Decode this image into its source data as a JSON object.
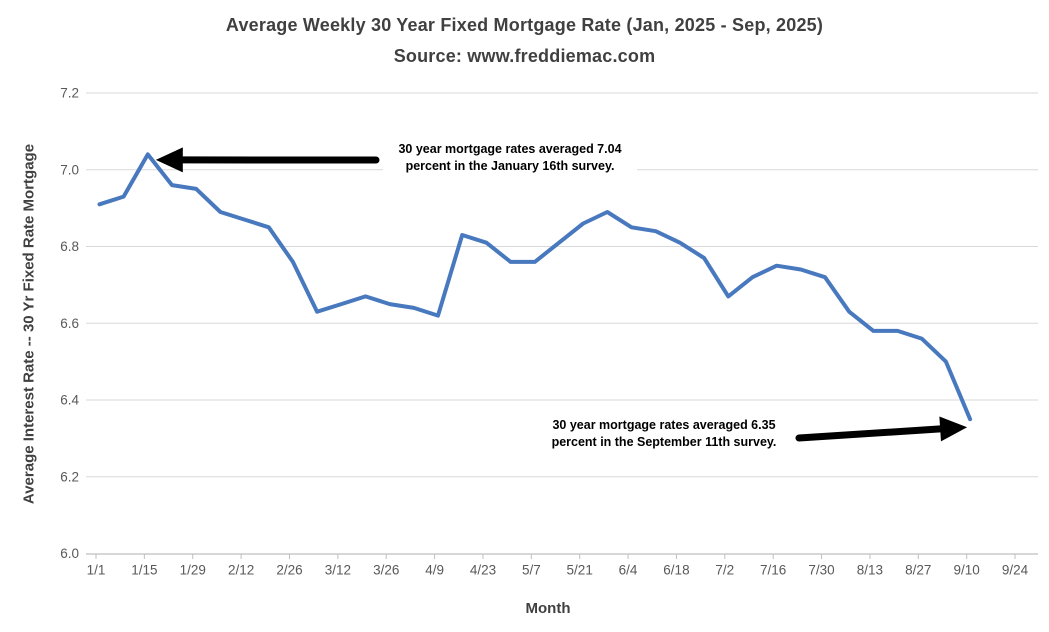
{
  "title": {
    "line1": "Average Weekly 30 Year Fixed Mortgage Rate (Jan, 2025 - Sep, 2025)",
    "line2": "Source: www.freddiemac.com"
  },
  "chart_data": {
    "type": "line",
    "title": "Average Weekly 30 Year Fixed Mortgage Rate (Jan, 2025 - Sep, 2025)",
    "subtitle": "Source: www.freddiemac.com",
    "xlabel": "Month",
    "ylabel": "Average Interest Rate -- 30 Yr Fixed Rate Mortgage",
    "x": [
      "1/2",
      "1/9",
      "1/16",
      "1/23",
      "1/30",
      "2/6",
      "2/13",
      "2/20",
      "2/27",
      "3/6",
      "3/13",
      "3/20",
      "3/27",
      "4/3",
      "4/10",
      "4/17",
      "4/24",
      "5/1",
      "5/8",
      "5/15",
      "5/22",
      "5/29",
      "6/5",
      "6/12",
      "6/19",
      "6/26",
      "7/3",
      "7/10",
      "7/17",
      "7/24",
      "7/31",
      "8/7",
      "8/14",
      "8/21",
      "8/28",
      "9/4",
      "9/11"
    ],
    "values": [
      6.91,
      6.93,
      7.04,
      6.96,
      6.95,
      6.89,
      6.87,
      6.85,
      6.76,
      6.63,
      6.65,
      6.67,
      6.65,
      6.64,
      6.62,
      6.83,
      6.81,
      6.76,
      6.76,
      6.81,
      6.86,
      6.89,
      6.85,
      6.84,
      6.81,
      6.77,
      6.67,
      6.72,
      6.75,
      6.74,
      6.72,
      6.63,
      6.58,
      6.58,
      6.56,
      6.5,
      6.35
    ],
    "ylim": [
      6.0,
      7.2
    ],
    "yticks": [
      6.0,
      6.2,
      6.4,
      6.6,
      6.8,
      7.0,
      7.2
    ],
    "xticks": [
      "1/1",
      "1/15",
      "1/29",
      "2/12",
      "2/26",
      "3/12",
      "3/26",
      "4/9",
      "4/23",
      "5/7",
      "5/21",
      "6/4",
      "6/18",
      "7/2",
      "7/16",
      "7/30",
      "8/13",
      "8/27",
      "9/10",
      "9/24"
    ],
    "grid": true,
    "legend": "none",
    "annotations": [
      {
        "line1": "30 year mortgage rates averaged 7.04",
        "line2": "percent in the January 16th survey.",
        "target_date": "1/16",
        "target_index": 2,
        "target_value": 7.04
      },
      {
        "line1": "30 year mortgage rates averaged 6.35",
        "line2": "percent in the September 11th survey.",
        "target_date": "9/11",
        "target_index": 36,
        "target_value": 6.35
      }
    ]
  },
  "colors": {
    "line": "#4878BE",
    "grid": "#D9D9D9",
    "axis": "#BFBFBF",
    "tick_text": "#595959",
    "title_text": "#404040",
    "annotation": "#000000"
  }
}
